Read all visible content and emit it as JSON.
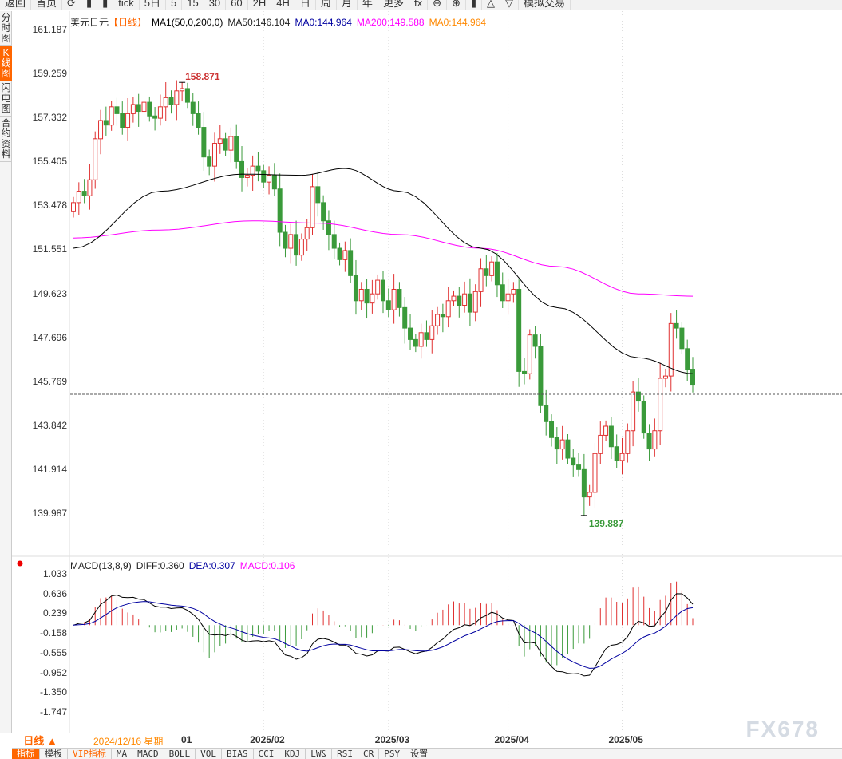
{
  "toolbar": {
    "items": [
      "返回",
      "首页",
      "⟳",
      "",
      "",
      "tick",
      "5日",
      "5",
      "15",
      "30",
      "60",
      "2H",
      "4H",
      "日",
      "周",
      "月",
      "年",
      "更多",
      "fx",
      "⊖",
      "⊕",
      "",
      "△",
      "▽",
      "模拟交易"
    ]
  },
  "sidebar": {
    "items": [
      "分时图",
      "K线图",
      "闪电图",
      "合约资料"
    ],
    "active": 1
  },
  "legend": {
    "symbol": "美元日元",
    "period": "【日线】",
    "indicator": "MA1(50,0,200,0)",
    "ma50": "MA50:146.104",
    "ma0a": "MA0:144.964",
    "ma200": "MA200:149.588",
    "ma0b": "MA0:144.964"
  },
  "macd_legend": {
    "name": "MACD(13,8,9)",
    "diff": "DIFF:0.360",
    "dea": "DEA:0.307",
    "macd": "MACD:0.106"
  },
  "colors": {
    "up": "#e03030",
    "down": "#3a9a3a",
    "ma50": "#000000",
    "ma200": "#ff00ff",
    "dea": "#0000a0",
    "ma0": "#ff8000"
  },
  "chart_data": {
    "type": "candlestick",
    "y_ticks": [
      "161.187",
      "159.259",
      "157.332",
      "155.405",
      "153.478",
      "151.551",
      "149.623",
      "147.696",
      "145.769",
      "143.842",
      "141.914",
      "139.987"
    ],
    "ylim": [
      139.987,
      161.187
    ],
    "macd_ticks": [
      "1.033",
      "0.636",
      "0.239",
      "-0.158",
      "-0.555",
      "-0.952",
      "-1.350",
      "-1.747"
    ],
    "macd_ylim": [
      -1.747,
      1.033
    ],
    "x_ticks": [
      {
        "label": "2025/02",
        "index": 35
      },
      {
        "label": "2025/03",
        "index": 58
      },
      {
        "label": "2025/04",
        "index": 80
      },
      {
        "label": "2025/05",
        "index": 101
      }
    ],
    "high_label": "158.871",
    "low_label": "139.887",
    "first_open": 153.2,
    "closes": [
      153.6,
      154.1,
      153.9,
      154.6,
      156.4,
      157.2,
      157.0,
      157.8,
      157.5,
      156.9,
      157.5,
      157.9,
      157.6,
      158.0,
      157.4,
      157.3,
      157.8,
      158.2,
      157.9,
      158.5,
      158.6,
      158.0,
      157.5,
      156.9,
      155.6,
      155.2,
      156.2,
      156.4,
      155.9,
      156.5,
      155.4,
      154.7,
      154.8,
      155.2,
      155.0,
      154.5,
      154.8,
      154.2,
      152.3,
      151.6,
      152.2,
      151.3,
      152.0,
      152.5,
      154.3,
      153.6,
      152.8,
      152.2,
      151.6,
      151.1,
      151.5,
      150.4,
      149.3,
      149.8,
      149.2,
      149.6,
      150.2,
      149.3,
      148.9,
      149.8,
      149.0,
      148.1,
      147.6,
      147.3,
      147.9,
      147.6,
      148.2,
      148.7,
      148.6,
      149.3,
      149.5,
      149.1,
      149.6,
      148.8,
      149.7,
      150.7,
      150.4,
      151.0,
      150.0,
      149.3,
      149.6,
      149.8,
      146.2,
      146.1,
      147.8,
      147.3,
      144.7,
      144.0,
      143.3,
      142.8,
      143.2,
      142.4,
      142.1,
      141.9,
      140.7,
      140.9,
      142.6,
      143.4,
      143.8,
      142.9,
      142.3,
      142.6,
      143.6,
      145.3,
      144.9,
      143.5,
      142.8,
      143.6,
      145.9,
      146.0,
      148.3,
      148.1,
      147.2,
      146.3,
      145.6
    ],
    "ma50": [
      [
        0,
        151.6
      ],
      [
        16,
        154.1
      ],
      [
        31,
        154.85
      ],
      [
        42,
        154.8
      ],
      [
        50,
        155.1
      ],
      [
        60,
        154.1
      ],
      [
        75,
        151.6
      ],
      [
        89,
        149.0
      ],
      [
        104,
        146.8
      ],
      [
        114,
        146.1
      ]
    ],
    "ma200": [
      [
        0,
        152.05
      ],
      [
        16,
        152.4
      ],
      [
        33,
        152.8
      ],
      [
        45,
        152.7
      ],
      [
        60,
        152.2
      ],
      [
        75,
        151.6
      ],
      [
        89,
        150.8
      ],
      [
        104,
        149.6
      ],
      [
        114,
        149.5
      ]
    ],
    "last_price": 145.2
  },
  "datebar": {
    "period": "日线 ▲",
    "current": "2024/12/16 星期一",
    "first_tick": "01"
  },
  "tabs": [
    "指标",
    "模板",
    "VIP指标",
    "MA",
    "MACD",
    "BOLL",
    "VOL",
    "BIAS",
    "CCI",
    "KDJ",
    "LW&",
    "RSI",
    "CR",
    "PSY",
    "设置"
  ],
  "watermark": "FX678"
}
